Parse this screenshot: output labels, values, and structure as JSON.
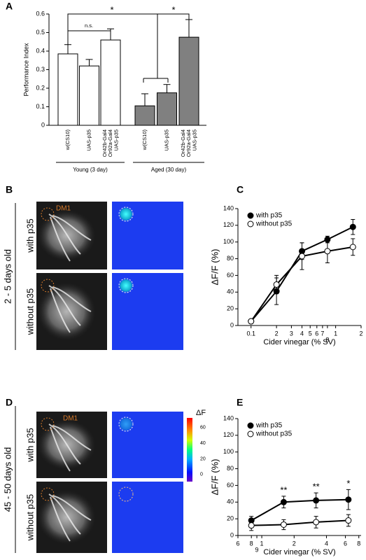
{
  "chart_data": [
    {
      "type": "bar",
      "ylabel": "Performance Index",
      "categories": [
        "w(CS10)",
        "UAS-p35",
        "Or42b-Gal4\nOr92a-Gal4\nUAS-p35",
        "w(CS10)",
        "UAS-p35",
        "Or42b-Gal4\nOr92a-Gal4\nUAS-p35"
      ],
      "values": [
        0.385,
        0.32,
        0.46,
        0.105,
        0.175,
        0.475
      ],
      "errors": [
        0.05,
        0.035,
        0.06,
        0.065,
        0.045,
        0.095
      ],
      "colors": [
        "#ffffff",
        "#ffffff",
        "#ffffff",
        "#808080",
        "#808080",
        "#808080"
      ],
      "groups": [
        "Young (3 day)",
        "Aged (30 day)"
      ],
      "annotations": [
        "n.s.",
        "*",
        "*"
      ],
      "ylim": [
        0,
        0.6
      ],
      "yticks": [
        0,
        0.1,
        0.2,
        0.3,
        0.4,
        0.5,
        0.6
      ]
    },
    {
      "type": "line",
      "ylabel": "ΔF/F (%)",
      "xlabel": "Cider vinegar (% SV)",
      "xscale": "log",
      "legend": "upper left",
      "x": [
        0.1,
        0.2,
        0.4,
        0.8,
        1.6
      ],
      "series": [
        {
          "name": "with p35",
          "color": "#000000",
          "filled": true,
          "values": [
            5,
            41,
            89,
            103,
            118
          ],
          "errors": [
            2,
            16,
            10,
            4,
            9
          ]
        },
        {
          "name": "without p35",
          "color": "#000000",
          "filled": false,
          "values": [
            5,
            49,
            83,
            89,
            94
          ],
          "errors": [
            2,
            11,
            16,
            14,
            10
          ]
        }
      ],
      "xlim": [
        0.07,
        2
      ],
      "xticks": [
        0.1,
        {
          "value": 0.2,
          "label": "2"
        },
        {
          "value": 0.3,
          "label": "3"
        },
        {
          "value": 0.4,
          "label": "4"
        },
        {
          "value": 0.5,
          "label": "5"
        },
        {
          "value": 0.6,
          "label": "6"
        },
        {
          "value": 0.7,
          "label": "7"
        },
        {
          "value": 0.8,
          "label": "8"
        },
        1,
        2
      ],
      "ylim": [
        0,
        140
      ],
      "yticks": [
        0,
        20,
        40,
        60,
        80,
        100,
        120,
        140
      ],
      "annotations": []
    },
    {
      "type": "line",
      "ylabel": "ΔF/F (%)",
      "xlabel": "Cider vinegar (% SV)",
      "xscale": "log",
      "legend": "upper left",
      "x": [
        0.8,
        1.6,
        3.2,
        6.4
      ],
      "series": [
        {
          "name": "with p35",
          "color": "#000000",
          "filled": true,
          "values": [
            18,
            40,
            42,
            43
          ],
          "errors": [
            5,
            7,
            9,
            12
          ]
        },
        {
          "name": "without p35",
          "color": "#000000",
          "filled": false,
          "values": [
            12,
            13,
            16,
            18
          ],
          "errors": [
            6,
            6,
            7,
            7
          ]
        }
      ],
      "xlim": [
        0.6,
        8.4
      ],
      "xticks": [
        {
          "value": 0.6,
          "label": "6"
        },
        {
          "value": 0.8,
          "label": "8"
        },
        {
          "value": 0.9,
          "label": "9"
        },
        1,
        2,
        4,
        6,
        8
      ],
      "ylim": [
        0,
        140
      ],
      "yticks": [
        0,
        20,
        40,
        60,
        80,
        100,
        120,
        140
      ],
      "annotations": [
        {
          "x": 1.6,
          "text": "**"
        },
        {
          "x": 3.2,
          "text": "**"
        },
        {
          "x": 6.4,
          "text": "*"
        }
      ]
    }
  ],
  "panel_labels": [
    "A",
    "B",
    "C",
    "D",
    "E"
  ],
  "image_panels": [
    {
      "age": "2 - 5 days old",
      "rows": [
        "with p35",
        "without p35"
      ],
      "region": "DM1"
    },
    {
      "age": "45 - 50 days old",
      "rows": [
        "with p35",
        "without p35"
      ],
      "region": "DM1",
      "colorbar": {
        "label": "ΔF",
        "clim": [
          -9,
          72
        ],
        "ticks": [
          60,
          40,
          20,
          0
        ]
      }
    }
  ]
}
